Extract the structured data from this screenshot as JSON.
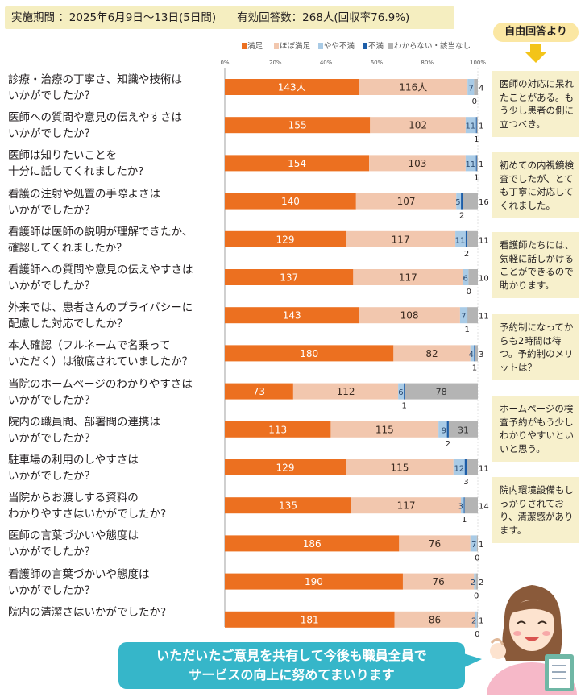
{
  "header": {
    "period": "実施期間 ：2025年6月9日～13日(5日間)",
    "responses": "有効回答数：268人(回収率76.9%)"
  },
  "legend": {
    "items": [
      {
        "label": "満足",
        "color": "#ec7020"
      },
      {
        "label": "ほぼ満足",
        "color": "#f2c7ae"
      },
      {
        "label": "やや不満",
        "color": "#a9cbe6"
      },
      {
        "label": "不満",
        "color": "#1d5ea8"
      },
      {
        "label": "わからない・該当なし",
        "color": "#b4b4b4"
      }
    ]
  },
  "chart_data": {
    "type": "bar",
    "orientation": "horizontal-stacked-percent",
    "x_ticks": [
      "0%",
      "20%",
      "40%",
      "60%",
      "80%",
      "100%"
    ],
    "series_names": [
      "満足",
      "ほぼ満足",
      "やや不満",
      "不満",
      "わからない・該当なし"
    ],
    "series_colors": [
      "#ec7020",
      "#f2c7ae",
      "#a9cbe6",
      "#1d5ea8",
      "#b4b4b4"
    ],
    "questions": [
      {
        "line1": "診療・治療の丁寧さ、知識や技術は",
        "line2": "いかがでしたか？",
        "values": [
          143,
          116,
          7,
          0,
          4
        ],
        "labels": [
          "143人",
          "116人",
          "7",
          "0",
          "4"
        ]
      },
      {
        "line1": "医師への質問や意見の伝えやすさは",
        "line2": "いかがでしたか？",
        "values": [
          155,
          102,
          11,
          1,
          1
        ],
        "labels": [
          "155",
          "102",
          "11",
          "1",
          "1"
        ]
      },
      {
        "line1": "医師は知りたいことを",
        "line2": "十分に話してくれましたか?",
        "values": [
          154,
          103,
          11,
          1,
          1
        ],
        "labels": [
          "154",
          "103",
          "11",
          "1",
          "1"
        ]
      },
      {
        "line1": "看護の注射や処置の手際よさは",
        "line2": "いかがでしたか？",
        "values": [
          140,
          107,
          5,
          2,
          16
        ],
        "labels": [
          "140",
          "107",
          "5",
          "2",
          "16"
        ]
      },
      {
        "line1": "看護師は医師の説明が理解できたか、",
        "line2": "確認してくれましたか？",
        "values": [
          129,
          117,
          11,
          2,
          11
        ],
        "labels": [
          "129",
          "117",
          "11",
          "2",
          "11"
        ]
      },
      {
        "line1": "看護師への質問や意見の伝えやすさは",
        "line2": "いかがでしたか？",
        "values": [
          137,
          117,
          6,
          0,
          10
        ],
        "labels": [
          "137",
          "117",
          "6",
          "0",
          "10"
        ]
      },
      {
        "line1": "外来では、患者さんのプライバシーに",
        "line2": "配慮した対応でしたか？",
        "values": [
          143,
          108,
          7,
          1,
          11
        ],
        "labels": [
          "143",
          "108",
          "7",
          "1",
          "11"
        ]
      },
      {
        "line1": "本人確認（フルネームで名乗って",
        "line2": "いただく）は徹底されていましたか？",
        "values": [
          180,
          82,
          4,
          1,
          3
        ],
        "labels": [
          "180",
          "82",
          "4",
          "1",
          "3"
        ]
      },
      {
        "line1": "当院のホームページのわかりやすさは",
        "line2": "いかがでしたか？",
        "values": [
          73,
          112,
          6,
          1,
          78
        ],
        "labels": [
          "73",
          "112",
          "6",
          "1",
          "78"
        ]
      },
      {
        "line1": "院内の職員間、部署間の連携は",
        "line2": "いかがでしたか？",
        "values": [
          113,
          115,
          9,
          2,
          31
        ],
        "labels": [
          "113",
          "115",
          "9",
          "2",
          "31"
        ]
      },
      {
        "line1": "駐車場の利用のしやすさは",
        "line2": "いかがでしたか？",
        "values": [
          129,
          115,
          12,
          3,
          11
        ],
        "labels": [
          "129",
          "115",
          "12",
          "3",
          "11"
        ]
      },
      {
        "line1": "当院からお渡しする資料の",
        "line2": "わかりやすさはいかがでしたか?",
        "values": [
          135,
          117,
          3,
          1,
          14
        ],
        "labels": [
          "135",
          "117",
          "3",
          "1",
          "14"
        ]
      },
      {
        "line1": "医師の言葉づかいや態度は",
        "line2": "いかがでしたか？",
        "values": [
          186,
          76,
          7,
          0,
          1
        ],
        "labels": [
          "186",
          "76",
          "7",
          "0",
          "1"
        ]
      },
      {
        "line1": "看護師の言葉づかいや態度は",
        "line2": "いかがでしたか？",
        "values": [
          190,
          76,
          2,
          0,
          2
        ],
        "labels": [
          "190",
          "76",
          "2",
          "0",
          "2"
        ]
      },
      {
        "line1": "院内の清潔さはいかがでしたか?",
        "line2": "",
        "values": [
          181,
          86,
          2,
          0,
          1
        ],
        "labels": [
          "181",
          "86",
          "2",
          "0",
          "1"
        ]
      }
    ]
  },
  "side": {
    "title": "自由回答より",
    "cards": [
      "医師の対応に呆れたことがある。もう少し患者の側に立つべき。",
      "初めての内視鏡検査でしたが、とても丁寧に対応してくれました。",
      "看護師たちには、気軽に話しかけることができるので助かります。",
      "予約制になってからも2時間は待つ。予約制のメリットは？",
      "ホームページの検査予約がもう少しわかりやすいといいと思う。",
      "院内環境設備もしっかりされており、清潔感があります。"
    ]
  },
  "footer": {
    "line1": "いただいたご意見を共有して今後も職員全員で",
    "line2": "サービスの向上に努めてまいります"
  }
}
